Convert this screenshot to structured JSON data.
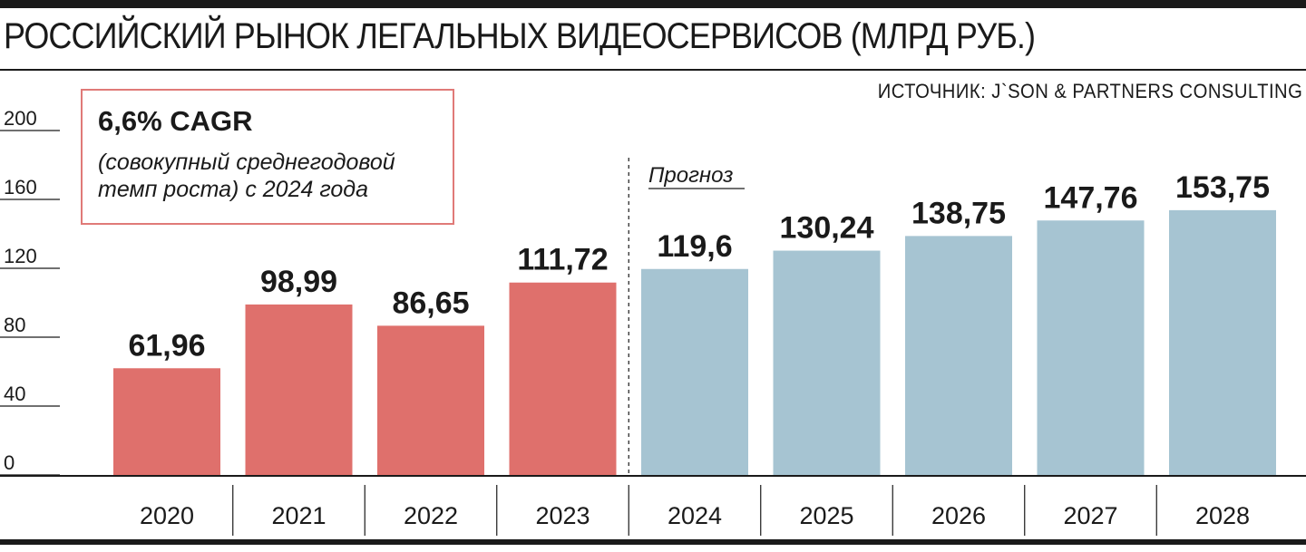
{
  "header": {
    "title": "РОССИЙСКИЙ РЫНОК ЛЕГАЛЬНЫХ ВИДЕОСЕРВИСОВ (МЛРД РУБ.)",
    "source": "ИСТОЧНИК: J`SON & PARTNERS CONSULTING"
  },
  "annotation": {
    "cagr": "6,6% CAGR",
    "note": "(совокупный среднегодовой темп роста) с 2024 года"
  },
  "colors": {
    "actual": "#df706c",
    "forecast": "#a6c4d2",
    "box_border": "#e07a78",
    "text": "#1a1a1a"
  },
  "chart_data": {
    "type": "bar",
    "title": "РОССИЙСКИЙ РЫНОК ЛЕГАЛЬНЫХ ВИДЕОСЕРВИСОВ (МЛРД РУБ.)",
    "xlabel": "",
    "ylabel": "",
    "ylim": [
      0,
      200
    ],
    "yticks": [
      0,
      40,
      80,
      120,
      160,
      200
    ],
    "categories": [
      "2020",
      "2021",
      "2022",
      "2023",
      "2024",
      "2025",
      "2026",
      "2027",
      "2028"
    ],
    "values": [
      61.96,
      98.99,
      86.65,
      111.72,
      119.6,
      130.24,
      138.75,
      147.76,
      153.75
    ],
    "value_labels": [
      "61,96",
      "98,99",
      "86,65",
      "111,72",
      "119,6",
      "130,24",
      "138,75",
      "147,76",
      "153,75"
    ],
    "forecast_from": "2024",
    "forecast_label": "Прогноз",
    "grid": false,
    "legend": "none"
  }
}
